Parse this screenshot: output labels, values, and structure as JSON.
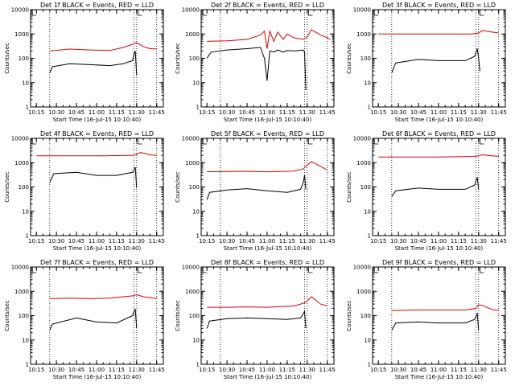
{
  "colors": {
    "events": "#000000",
    "lld": "#dd0000",
    "background": "#ffffff"
  },
  "common": {
    "type": "line",
    "xlabel": "Start Time (16-Jul-15 10:10:40)",
    "ylabel": "Counts/sec",
    "yscale": "log",
    "ylim": [
      1,
      10000
    ],
    "yticks": [
      1,
      10,
      100,
      1000,
      10000
    ],
    "ytick_labels": [
      "1",
      "10",
      "100",
      "1000",
      "10000"
    ],
    "xlim": [
      "10:10:40",
      "11:50:00"
    ],
    "xticks": [
      "10:15",
      "10:30",
      "10:45",
      "11:00",
      "11:15",
      "11:30",
      "11:45"
    ],
    "vlines": [
      "10:25:00",
      "11:28:00",
      "11:30:00",
      "11:45:00"
    ],
    "corner_marks": [
      "10:12:00",
      "11:31:00"
    ]
  },
  "chart_data": [
    {
      "type": "line",
      "title": "Det 1f BLACK = Events, RED = LLD",
      "series": [
        {
          "name": "RED",
          "x": [
            "10:25",
            "10:40",
            "10:55",
            "11:10",
            "11:20",
            "11:27",
            "11:29",
            "11:31",
            "11:35",
            "11:40",
            "11:45"
          ],
          "y": [
            200,
            240,
            220,
            210,
            280,
            380,
            420,
            420,
            300,
            250,
            240
          ]
        },
        {
          "name": "BLACK",
          "x": [
            "10:25",
            "10:27",
            "10:40",
            "10:55",
            "11:10",
            "11:20",
            "11:27",
            "11:28",
            "11:29",
            "11:30"
          ],
          "y": [
            25,
            45,
            60,
            55,
            50,
            60,
            80,
            150,
            200,
            20
          ]
        }
      ]
    },
    {
      "type": "line",
      "title": "Det 2f BLACK = Events, RED = LLD",
      "series": [
        {
          "name": "RED",
          "x": [
            "10:15",
            "10:30",
            "10:45",
            "10:55",
            "10:58",
            "11:00",
            "11:02",
            "11:05",
            "11:08",
            "11:12",
            "11:15",
            "11:20",
            "11:27",
            "11:30",
            "11:33",
            "11:35",
            "11:40",
            "11:45",
            "11:47"
          ],
          "y": [
            500,
            520,
            600,
            900,
            1300,
            250,
            1300,
            500,
            1200,
            600,
            1000,
            700,
            600,
            750,
            1500,
            1300,
            900,
            700,
            600
          ]
        },
        {
          "name": "BLACK",
          "x": [
            "10:15",
            "10:18",
            "10:30",
            "10:45",
            "10:55",
            "10:58",
            "11:00",
            "11:02",
            "11:05",
            "11:08",
            "11:12",
            "11:15",
            "11:20",
            "11:27",
            "11:28",
            "11:29"
          ],
          "y": [
            100,
            180,
            220,
            250,
            280,
            100,
            12,
            200,
            180,
            220,
            180,
            210,
            200,
            220,
            180,
            5
          ]
        }
      ]
    },
    {
      "type": "line",
      "title": "Det 3f BLACK = Events, RED = LLD",
      "series": [
        {
          "name": "RED",
          "x": [
            "10:15",
            "10:30",
            "11:00",
            "11:25",
            "11:30",
            "11:33",
            "11:36",
            "11:40",
            "11:45"
          ],
          "y": [
            1000,
            1000,
            1000,
            1000,
            1100,
            1400,
            1300,
            1200,
            1100
          ]
        },
        {
          "name": "BLACK",
          "x": [
            "10:25",
            "10:28",
            "10:45",
            "11:00",
            "11:20",
            "11:27",
            "11:29",
            "11:30",
            "11:31"
          ],
          "y": [
            25,
            65,
            90,
            80,
            80,
            120,
            250,
            100,
            30
          ]
        }
      ]
    },
    {
      "type": "line",
      "title": "Det 4f BLACK = Events, RED = LLD",
      "series": [
        {
          "name": "RED",
          "x": [
            "10:15",
            "10:30",
            "11:00",
            "11:28",
            "11:30",
            "11:33",
            "11:36",
            "11:40",
            "11:45"
          ],
          "y": [
            1900,
            1900,
            1900,
            2000,
            2200,
            2600,
            2400,
            2100,
            2000
          ]
        },
        {
          "name": "BLACK",
          "x": [
            "10:25",
            "10:28",
            "10:45",
            "11:00",
            "11:15",
            "11:27",
            "11:28",
            "11:29",
            "11:30"
          ],
          "y": [
            150,
            350,
            400,
            300,
            300,
            400,
            500,
            650,
            90
          ]
        }
      ]
    },
    {
      "type": "line",
      "title": "Det 5f BLACK = Events, RED = LLD",
      "series": [
        {
          "name": "RED",
          "x": [
            "10:15",
            "10:30",
            "10:45",
            "11:00",
            "11:20",
            "11:27",
            "11:30",
            "11:33",
            "11:35",
            "11:40",
            "11:45"
          ],
          "y": [
            420,
            430,
            440,
            420,
            450,
            550,
            800,
            1100,
            1000,
            700,
            500
          ]
        },
        {
          "name": "BLACK",
          "x": [
            "10:15",
            "10:17",
            "10:30",
            "10:45",
            "11:00",
            "11:15",
            "11:25",
            "11:27",
            "11:28",
            "11:29"
          ],
          "y": [
            30,
            60,
            75,
            85,
            70,
            60,
            80,
            150,
            300,
            80
          ]
        }
      ]
    },
    {
      "type": "line",
      "title": "Det 6f BLACK = Events, RED = LLD",
      "series": [
        {
          "name": "RED",
          "x": [
            "10:15",
            "10:30",
            "11:00",
            "11:28",
            "11:30",
            "11:33",
            "11:36",
            "11:40",
            "11:45"
          ],
          "y": [
            1700,
            1700,
            1700,
            1800,
            1900,
            2100,
            2000,
            1900,
            1800
          ]
        },
        {
          "name": "BLACK",
          "x": [
            "10:25",
            "10:28",
            "10:45",
            "11:00",
            "11:20",
            "11:27",
            "11:29",
            "11:30"
          ],
          "y": [
            40,
            70,
            90,
            80,
            80,
            120,
            250,
            80
          ]
        }
      ]
    },
    {
      "type": "line",
      "title": "Det 7f BLACK = Events, RED = LLD",
      "series": [
        {
          "name": "RED",
          "x": [
            "10:25",
            "10:40",
            "10:55",
            "11:10",
            "11:20",
            "11:27",
            "11:29",
            "11:31",
            "11:35",
            "11:40",
            "11:45"
          ],
          "y": [
            500,
            520,
            500,
            520,
            600,
            650,
            700,
            700,
            600,
            550,
            500
          ]
        },
        {
          "name": "BLACK",
          "x": [
            "10:25",
            "10:27",
            "10:45",
            "11:00",
            "11:15",
            "11:27",
            "11:28",
            "11:29",
            "11:30"
          ],
          "y": [
            25,
            45,
            80,
            55,
            50,
            100,
            150,
            180,
            30
          ]
        }
      ]
    },
    {
      "type": "line",
      "title": "Det 8f BLACK = Events, RED = LLD",
      "series": [
        {
          "name": "RED",
          "x": [
            "10:15",
            "10:30",
            "10:45",
            "11:00",
            "11:20",
            "11:27",
            "11:30",
            "11:33",
            "11:35",
            "11:40",
            "11:45"
          ],
          "y": [
            220,
            220,
            230,
            220,
            250,
            320,
            400,
            600,
            500,
            300,
            250
          ]
        },
        {
          "name": "BLACK",
          "x": [
            "10:15",
            "10:17",
            "10:30",
            "10:45",
            "11:00",
            "11:15",
            "11:25",
            "11:27",
            "11:28",
            "11:29"
          ],
          "y": [
            30,
            60,
            75,
            80,
            75,
            70,
            80,
            120,
            150,
            30
          ]
        }
      ]
    },
    {
      "type": "line",
      "title": "Det 9f BLACK = Events, RED = LLD",
      "series": [
        {
          "name": "RED",
          "x": [
            "10:25",
            "10:40",
            "11:00",
            "11:20",
            "11:28",
            "11:30",
            "11:33",
            "11:36",
            "11:40",
            "11:45"
          ],
          "y": [
            160,
            170,
            170,
            170,
            200,
            280,
            260,
            220,
            180,
            160
          ]
        },
        {
          "name": "BLACK",
          "x": [
            "10:25",
            "10:28",
            "10:45",
            "11:00",
            "11:20",
            "11:27",
            "11:29",
            "11:30"
          ],
          "y": [
            25,
            50,
            55,
            50,
            50,
            70,
            120,
            25
          ]
        }
      ]
    }
  ]
}
